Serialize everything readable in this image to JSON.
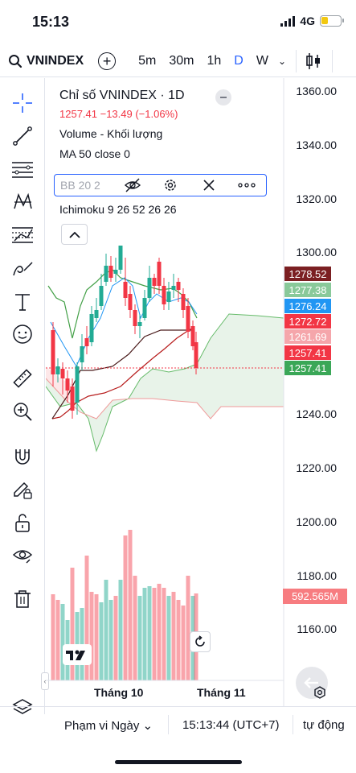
{
  "status": {
    "time": "15:13",
    "network": "4G"
  },
  "toolbar": {
    "symbol": "VNINDEX",
    "intervals": [
      "5m",
      "30m",
      "1h",
      "D",
      "W"
    ],
    "active_interval": "D"
  },
  "legend": {
    "title": "Chỉ số VNINDEX · 1D",
    "ohlc": "1257.41 −13.49 (−1.06%)",
    "volume": "Volume - Khối lượng",
    "ma": "MA 50 close 0",
    "bb": "BB 20 2",
    "ichimoku": "Ichimoku 9 26 52 26 26"
  },
  "price_axis": {
    "ticks": [
      "1360.00",
      "1340.00",
      "1320.00",
      "1300.00",
      "1240.00",
      "1220.00",
      "1200.00",
      "1180.00",
      "1160.00"
    ],
    "badges": [
      {
        "value": "1278.52",
        "color": "#7b1f22"
      },
      {
        "value": "1277.38",
        "color": "#89c99a"
      },
      {
        "value": "1276.24",
        "color": "#2196f3"
      },
      {
        "value": "1272.72",
        "color": "#f23645"
      },
      {
        "value": "1261.69",
        "color": "#f5a6ab"
      },
      {
        "value": "1257.41",
        "color": "#f23645"
      },
      {
        "value": "1257.41",
        "color": "#3aa757"
      }
    ],
    "volume_badge": "592.565M"
  },
  "time_axis": {
    "labels": [
      "Tháng 10",
      "Tháng 11"
    ]
  },
  "bottom": {
    "range": "Phạm vi Ngày",
    "clock": "15:13:44 (UTC+7)",
    "auto": "tự động"
  },
  "colors": {
    "up": "#22ab94",
    "down": "#f23645",
    "accent": "#2962ff"
  }
}
